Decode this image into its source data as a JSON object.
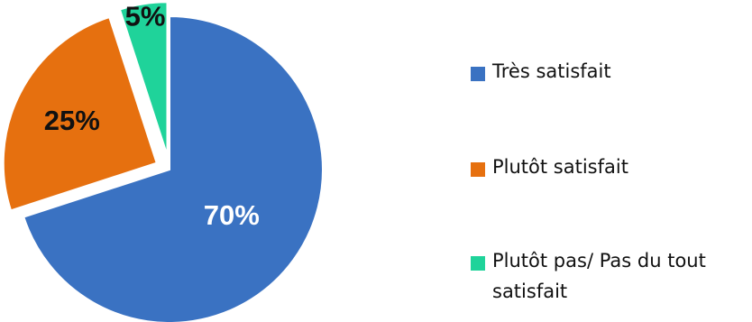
{
  "chart_data": {
    "type": "pie",
    "categories": [
      "Très satisfait",
      "Plutôt satisfait",
      "Plutôt pas/ Pas du tout satisfait"
    ],
    "values": [
      70,
      25,
      5
    ],
    "value_labels": [
      "70%",
      "25%",
      "5%"
    ],
    "colors": [
      "#3a72c2",
      "#e6700f",
      "#1fd39a"
    ],
    "exploded": [
      false,
      true,
      true
    ],
    "legend_position": "right"
  }
}
